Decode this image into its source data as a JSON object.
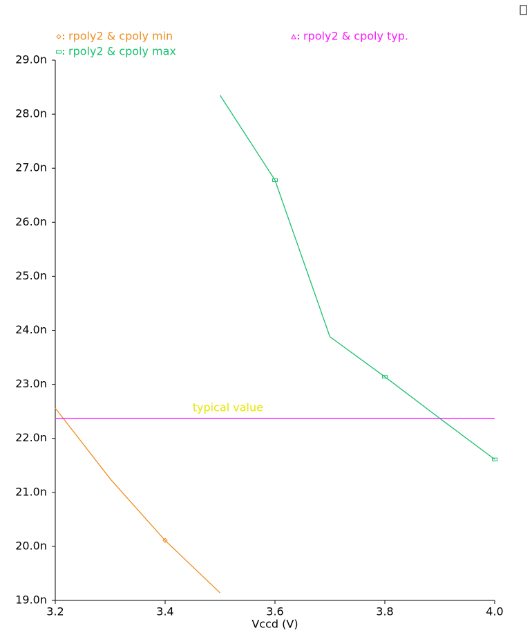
{
  "chart_data": {
    "type": "line",
    "xlabel": "Vccd (V)",
    "annotations": [
      {
        "text": "typical value",
        "x": 3.45,
        "y": 22.56,
        "color": "#e6e600"
      }
    ],
    "series": [
      {
        "name": "rpoly2 & cpoly min",
        "color": "#f08c1e",
        "marker": "diamond",
        "x": [
          3.2,
          3.3,
          3.4,
          3.5
        ],
        "values": [
          22.56,
          21.25,
          20.11,
          19.14
        ]
      },
      {
        "name": "rpoly2 & cpoly max",
        "color": "#19c06e",
        "marker": "rect",
        "x": [
          3.5,
          3.6,
          3.7,
          3.8,
          3.9,
          4.0
        ],
        "values": [
          28.35,
          26.78,
          23.88,
          23.14,
          22.37,
          21.61
        ]
      },
      {
        "name": "rpoly2 & cpoly typ.",
        "color": "#ff14ff",
        "marker": "triangle",
        "x": [
          3.2,
          4.0
        ],
        "values": [
          22.37,
          22.37
        ]
      }
    ],
    "xlim": [
      3.2,
      4.0
    ],
    "xticks": [
      3.2,
      3.4,
      3.6,
      3.8,
      {
        "value": 4,
        "label": "4.0"
      }
    ],
    "ylim": [
      19,
      29
    ],
    "yticks": [
      {
        "value": 19,
        "label": "19.0n"
      },
      {
        "value": 20,
        "label": "20.0n"
      },
      {
        "value": 21,
        "label": "21.0n"
      },
      {
        "value": 22,
        "label": "22.0n"
      },
      {
        "value": 23,
        "label": "23.0n"
      },
      {
        "value": 24,
        "label": "24.0n"
      },
      {
        "value": 25,
        "label": "25.0n"
      },
      {
        "value": 26,
        "label": "26.0n"
      },
      {
        "value": 27,
        "label": "27.0n"
      },
      {
        "value": 28,
        "label": "28.0n"
      },
      {
        "value": 29,
        "label": "29.0n"
      }
    ]
  }
}
